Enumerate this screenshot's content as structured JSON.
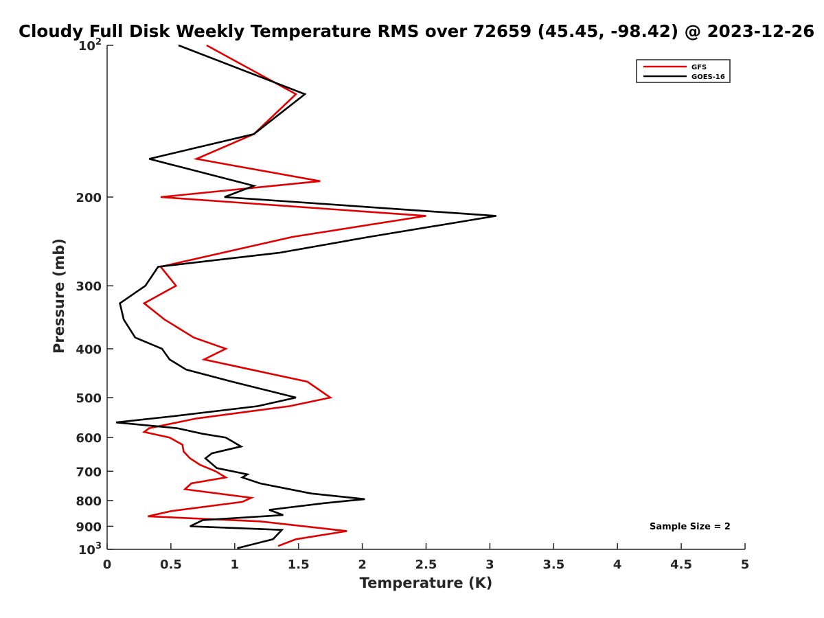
{
  "chart_data": {
    "type": "line",
    "title": "Cloudy Full Disk Weekly Temperature RMS over 72659 (45.45, -98.42) @ 2023-12-26",
    "xlabel": "Temperature (K)",
    "ylabel": "Pressure (mb)",
    "xlim": [
      0,
      5
    ],
    "ylim": [
      100,
      1000
    ],
    "y_scale": "log",
    "y_reversed": true,
    "x_ticks": [
      "0",
      "0.5",
      "1",
      "1.5",
      "2",
      "2.5",
      "3",
      "3.5",
      "4",
      "4.5",
      "5"
    ],
    "y_ticks": [
      {
        "value": 100,
        "label": "10",
        "exp": "2"
      },
      {
        "value": 200,
        "label": "200",
        "exp": ""
      },
      {
        "value": 300,
        "label": "300",
        "exp": ""
      },
      {
        "value": 400,
        "label": "400",
        "exp": ""
      },
      {
        "value": 500,
        "label": "500",
        "exp": ""
      },
      {
        "value": 600,
        "label": "600",
        "exp": ""
      },
      {
        "value": 700,
        "label": "700",
        "exp": ""
      },
      {
        "value": 800,
        "label": "800",
        "exp": ""
      },
      {
        "value": 900,
        "label": "900",
        "exp": ""
      },
      {
        "value": 1000,
        "label": "10",
        "exp": "3"
      }
    ],
    "grid": false,
    "legend_position": "top-right",
    "annotation": "Sample Size = 2",
    "series": [
      {
        "name": "GFS",
        "color": "#e00000",
        "points": [
          [
            0.78,
            100
          ],
          [
            1.48,
            125
          ],
          [
            1.15,
            150
          ],
          [
            0.7,
            168
          ],
          [
            1.67,
            186
          ],
          [
            0.42,
            200
          ],
          [
            2.5,
            218
          ],
          [
            1.45,
            240
          ],
          [
            0.42,
            275
          ],
          [
            0.54,
            300
          ],
          [
            0.29,
            325
          ],
          [
            0.45,
            350
          ],
          [
            0.68,
            380
          ],
          [
            0.93,
            400
          ],
          [
            0.76,
            420
          ],
          [
            1.57,
            465
          ],
          [
            1.75,
            500
          ],
          [
            1.43,
            520
          ],
          [
            0.7,
            550
          ],
          [
            0.33,
            575
          ],
          [
            0.29,
            585
          ],
          [
            0.49,
            600
          ],
          [
            0.59,
            620
          ],
          [
            0.6,
            640
          ],
          [
            0.65,
            660
          ],
          [
            0.73,
            680
          ],
          [
            0.85,
            700
          ],
          [
            0.93,
            720
          ],
          [
            0.66,
            740
          ],
          [
            0.61,
            760
          ],
          [
            1.13,
            790
          ],
          [
            1.06,
            805
          ],
          [
            0.5,
            840
          ],
          [
            0.32,
            860
          ],
          [
            1.2,
            880
          ],
          [
            1.88,
            920
          ],
          [
            1.48,
            955
          ],
          [
            1.34,
            985
          ]
        ]
      },
      {
        "name": "GOES-16",
        "color": "#000000",
        "points": [
          [
            0.56,
            100
          ],
          [
            1.55,
            125
          ],
          [
            1.15,
            150
          ],
          [
            0.33,
            168
          ],
          [
            1.15,
            190
          ],
          [
            0.92,
            200
          ],
          [
            3.05,
            218
          ],
          [
            2.05,
            240
          ],
          [
            1.35,
            258
          ],
          [
            0.4,
            275
          ],
          [
            0.3,
            300
          ],
          [
            0.1,
            325
          ],
          [
            0.13,
            350
          ],
          [
            0.22,
            380
          ],
          [
            0.43,
            400
          ],
          [
            0.49,
            420
          ],
          [
            0.62,
            440
          ],
          [
            0.98,
            465
          ],
          [
            1.27,
            485
          ],
          [
            1.48,
            500
          ],
          [
            1.18,
            520
          ],
          [
            0.5,
            545
          ],
          [
            0.07,
            560
          ],
          [
            0.55,
            575
          ],
          [
            0.75,
            590
          ],
          [
            0.93,
            600
          ],
          [
            1.05,
            625
          ],
          [
            0.82,
            645
          ],
          [
            0.77,
            660
          ],
          [
            0.86,
            690
          ],
          [
            1.1,
            710
          ],
          [
            1.06,
            720
          ],
          [
            1.2,
            740
          ],
          [
            1.6,
            775
          ],
          [
            2.02,
            795
          ],
          [
            1.7,
            810
          ],
          [
            1.27,
            835
          ],
          [
            1.38,
            855
          ],
          [
            0.75,
            875
          ],
          [
            0.65,
            900
          ],
          [
            1.37,
            915
          ],
          [
            1.3,
            955
          ],
          [
            1.02,
            995
          ]
        ]
      }
    ]
  }
}
